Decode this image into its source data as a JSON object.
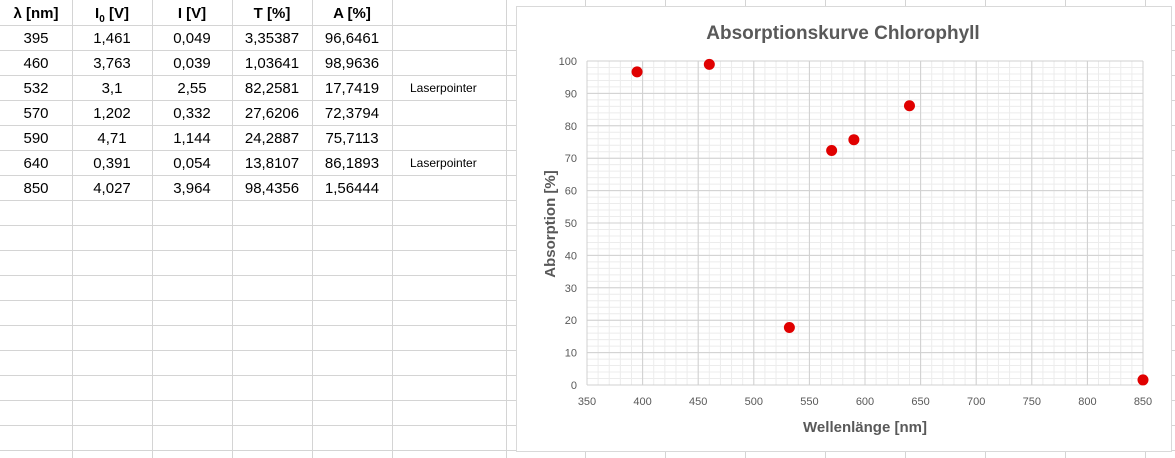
{
  "sheet": {
    "headers": [
      "λ [nm]",
      "I0 [V]",
      "I [V]",
      "T [%]",
      "A [%]"
    ],
    "rows": [
      [
        "395",
        "1,461",
        "0,049",
        "3,35387",
        "96,6461",
        ""
      ],
      [
        "460",
        "3,763",
        "0,039",
        "1,03641",
        "98,9636",
        ""
      ],
      [
        "532",
        "3,1",
        "2,55",
        "82,2581",
        "17,7419",
        "Laserpointer"
      ],
      [
        "570",
        "1,202",
        "0,332",
        "27,6206",
        "72,3794",
        ""
      ],
      [
        "590",
        "4,71",
        "1,144",
        "24,2887",
        "75,7113",
        ""
      ],
      [
        "640",
        "0,391",
        "0,054",
        "13,8107",
        "86,1893",
        "Laserpointer"
      ],
      [
        "850",
        "4,027",
        "3,964",
        "98,4356",
        "1,56444",
        ""
      ]
    ]
  },
  "chart_data": {
    "type": "scatter",
    "title": "Absorptionskurve Chlorophyll",
    "xlabel": "Wellenlänge [nm]",
    "ylabel": "Absorption [%]",
    "xlim": [
      350,
      850
    ],
    "ylim": [
      0,
      100
    ],
    "xticks": [
      350,
      400,
      450,
      500,
      550,
      600,
      650,
      700,
      750,
      800,
      850
    ],
    "yticks": [
      0,
      10,
      20,
      30,
      40,
      50,
      60,
      70,
      80,
      90,
      100
    ],
    "grid": true,
    "legend": "none",
    "marker_color": "#e00000",
    "series": [
      {
        "x": [
          395,
          460,
          532,
          570,
          590,
          640,
          850
        ],
        "y": [
          96.6461,
          98.9636,
          17.7419,
          72.3794,
          75.7113,
          86.1893,
          1.56444
        ]
      }
    ]
  }
}
